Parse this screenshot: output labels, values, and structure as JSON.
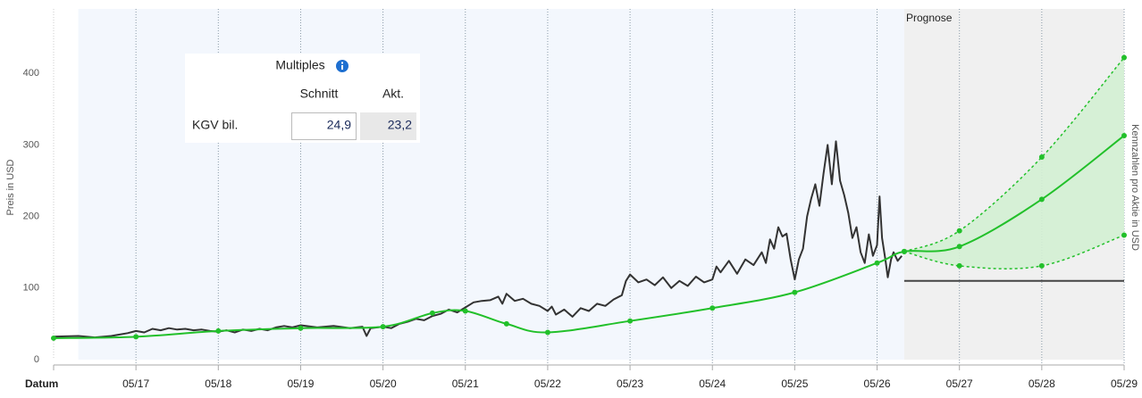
{
  "chart_data": {
    "type": "line",
    "x_label": "Datum",
    "y_label": "Preis in USD",
    "y2_label": "Kennzahlen pro Aktie in USD",
    "forecast_label": "Prognose",
    "xlim": [
      0,
      13
    ],
    "xticks": [
      {
        "value": 1,
        "label": "05/17"
      },
      {
        "value": 2,
        "label": "05/18"
      },
      {
        "value": 3,
        "label": "05/19"
      },
      {
        "value": 4,
        "label": "05/20"
      },
      {
        "value": 5,
        "label": "05/21"
      },
      {
        "value": 6,
        "label": "05/22"
      },
      {
        "value": 7,
        "label": "05/23"
      },
      {
        "value": 8,
        "label": "05/24"
      },
      {
        "value": 9,
        "label": "05/25"
      },
      {
        "value": 10,
        "label": "05/26"
      },
      {
        "value": 11,
        "label": "05/27"
      },
      {
        "value": 12,
        "label": "05/28"
      },
      {
        "value": 13,
        "label": "05/29"
      }
    ],
    "ylim": [
      0,
      490
    ],
    "yticks": [
      0,
      100,
      200,
      300,
      400
    ],
    "history_start": 0.3,
    "forecast_start": 10.33,
    "history_color": "#f3f7fd",
    "forecast_color": "#f0f0f0",
    "band_color": "#d3efd3",
    "series": [
      {
        "color": "#333333",
        "smooth": false,
        "dashed": false,
        "markers": false,
        "x": [
          0,
          0.3,
          0.5,
          0.7,
          0.9,
          1.0,
          1.1,
          1.2,
          1.3,
          1.4,
          1.5,
          1.6,
          1.7,
          1.8,
          1.9,
          2.0,
          2.1,
          2.2,
          2.3,
          2.4,
          2.5,
          2.6,
          2.7,
          2.8,
          2.9,
          3.0,
          3.2,
          3.4,
          3.6,
          3.75,
          3.8,
          3.85,
          4.0,
          4.1,
          4.2,
          4.3,
          4.4,
          4.5,
          4.6,
          4.7,
          4.8,
          4.9,
          5.0,
          5.1,
          5.2,
          5.3,
          5.4,
          5.45,
          5.5,
          5.6,
          5.7,
          5.8,
          5.9,
          6.0,
          6.05,
          6.1,
          6.2,
          6.3,
          6.4,
          6.5,
          6.6,
          6.7,
          6.8,
          6.9,
          6.95,
          7.0,
          7.1,
          7.2,
          7.3,
          7.4,
          7.5,
          7.6,
          7.7,
          7.8,
          7.9,
          8.0,
          8.05,
          8.1,
          8.2,
          8.3,
          8.4,
          8.5,
          8.6,
          8.65,
          8.7,
          8.75,
          8.8,
          8.85,
          8.9,
          8.95,
          9.0,
          9.05,
          9.1,
          9.15,
          9.2,
          9.25,
          9.3,
          9.35,
          9.4,
          9.45,
          9.5,
          9.55,
          9.6,
          9.65,
          9.7,
          9.75,
          9.8,
          9.85,
          9.9,
          9.95,
          10.0,
          10.03,
          10.06,
          10.1,
          10.13,
          10.17,
          10.2,
          10.25,
          10.3
        ],
        "values": [
          32,
          33,
          31,
          33,
          37,
          40,
          38,
          43,
          41,
          44,
          42,
          43,
          41,
          42,
          40,
          39,
          41,
          38,
          42,
          40,
          43,
          41,
          45,
          47,
          45,
          48,
          45,
          47,
          44,
          46,
          33,
          44,
          46,
          44,
          50,
          53,
          57,
          55,
          61,
          64,
          70,
          66,
          73,
          80,
          82,
          83,
          88,
          78,
          92,
          82,
          85,
          78,
          75,
          68,
          74,
          63,
          70,
          60,
          72,
          68,
          78,
          75,
          84,
          90,
          110,
          119,
          108,
          112,
          104,
          115,
          100,
          110,
          103,
          116,
          108,
          112,
          130,
          122,
          138,
          120,
          140,
          132,
          150,
          135,
          168,
          155,
          185,
          172,
          176,
          140,
          112,
          140,
          155,
          200,
          225,
          245,
          215,
          260,
          300,
          245,
          305,
          250,
          230,
          205,
          170,
          185,
          150,
          135,
          175,
          145,
          160,
          228,
          170,
          140,
          115,
          140,
          150,
          138,
          145
        ]
      },
      {
        "color": "#22c02a",
        "smooth": true,
        "dashed": false,
        "markers": true,
        "x": [
          0,
          1,
          2,
          3,
          4,
          4.6,
          5,
          5.5,
          6,
          7,
          8,
          9,
          10,
          10.33,
          11,
          12,
          13
        ],
        "values": [
          30,
          32,
          40,
          44,
          46,
          65,
          68,
          50,
          38,
          54,
          72,
          94,
          135,
          151,
          158,
          224,
          313
        ]
      },
      {
        "color": "#22c02a",
        "smooth": true,
        "dashed": true,
        "markers": true,
        "x": [
          10.33,
          11,
          12,
          13
        ],
        "values": [
          151,
          180,
          283,
          422
        ]
      },
      {
        "color": "#22c02a",
        "smooth": true,
        "dashed": true,
        "markers": true,
        "x": [
          10.33,
          11,
          12,
          13
        ],
        "values": [
          151,
          131,
          131,
          174
        ]
      },
      {
        "color": "#444444",
        "smooth": false,
        "dashed": false,
        "markers": false,
        "x": [
          10.33,
          13
        ],
        "values": [
          110,
          110
        ]
      }
    ]
  },
  "multiples": {
    "title": "Multiples",
    "headers": [
      "Schnitt",
      "Akt."
    ],
    "rows": [
      [
        "KGV bil.",
        "24,9",
        "23,2"
      ]
    ]
  }
}
